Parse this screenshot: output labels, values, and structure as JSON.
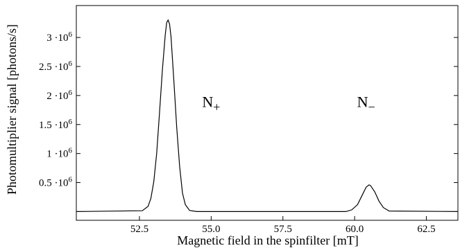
{
  "chart_data": {
    "type": "line",
    "title": "",
    "xlabel": "Magnetic field in the spinfilter [mT]",
    "ylabel": "Photomultiplier signal [photons/s]",
    "xlim": [
      50.3,
      63.6
    ],
    "ylim": [
      -150000,
      3550000
    ],
    "grid": false,
    "legend": "none",
    "x_ticks": [
      {
        "value": 52.5,
        "label": "52.5"
      },
      {
        "value": 55.0,
        "label": "55.0"
      },
      {
        "value": 57.5,
        "label": "57.5"
      },
      {
        "value": 60.0,
        "label": "60.0"
      },
      {
        "value": 62.5,
        "label": "62.5"
      }
    ],
    "y_ticks": [
      {
        "value": 500000,
        "mantissa": "0.5 ·10",
        "exp": "6"
      },
      {
        "value": 1000000,
        "mantissa": "1 ·10",
        "exp": "6"
      },
      {
        "value": 1500000,
        "mantissa": "1.5 ·10",
        "exp": "6"
      },
      {
        "value": 2000000,
        "mantissa": "2 ·10",
        "exp": "6"
      },
      {
        "value": 2500000,
        "mantissa": "2.5 ·10",
        "exp": "6"
      },
      {
        "value": 3000000,
        "mantissa": "3 ·10",
        "exp": "6"
      }
    ],
    "annotations": [
      {
        "name": "n-plus",
        "base": "N",
        "sub": "+",
        "x": 55.0,
        "y": 1800000
      },
      {
        "name": "n-minus",
        "base": "N",
        "sub": "−",
        "x": 60.4,
        "y": 1800000
      }
    ],
    "series": [
      {
        "x": [
          50.3,
          52.6,
          52.8,
          52.9,
          53.0,
          53.1,
          53.2,
          53.3,
          53.4,
          53.45,
          53.5,
          53.55,
          53.6,
          53.7,
          53.8,
          53.9,
          54.0,
          54.1,
          54.25,
          54.5,
          59.7,
          59.9,
          60.1,
          60.25,
          60.4,
          60.5,
          60.55,
          60.7,
          60.85,
          61.0,
          61.2,
          63.6
        ],
        "y": [
          0,
          15000,
          90000,
          230000,
          520000,
          1000000,
          1700000,
          2450000,
          3050000,
          3260000,
          3300000,
          3230000,
          3010000,
          2250000,
          1450000,
          780000,
          320000,
          120000,
          20000,
          0,
          0,
          30000,
          120000,
          270000,
          420000,
          460000,
          450000,
          340000,
          180000,
          70000,
          10000,
          0
        ]
      }
    ]
  }
}
